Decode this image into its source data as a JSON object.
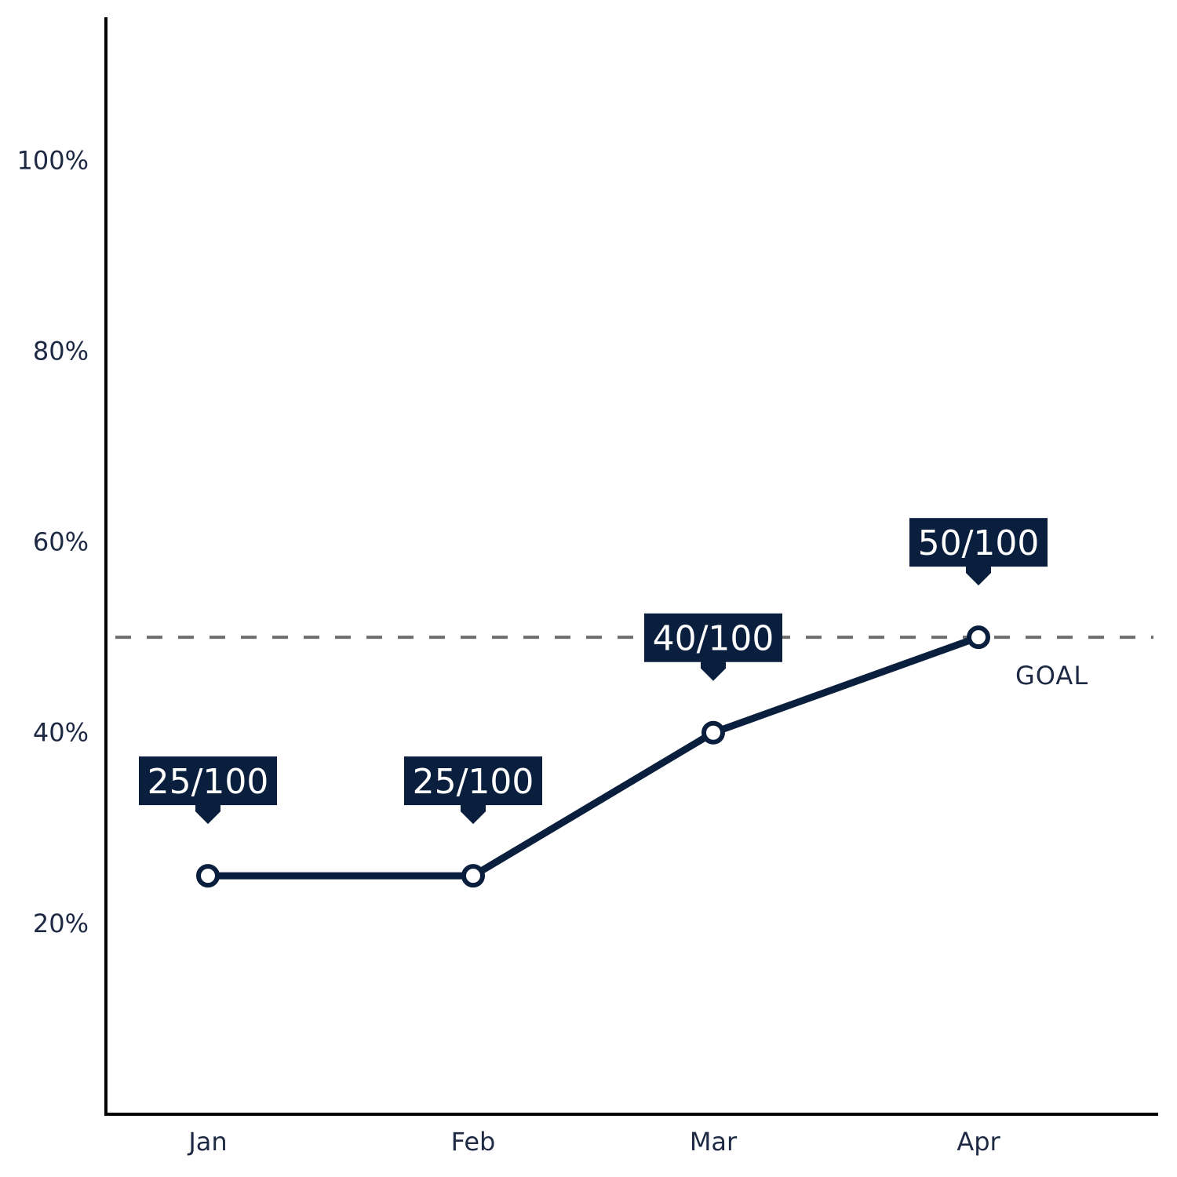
{
  "chart_data": {
    "type": "line",
    "categories": [
      "Jan",
      "Feb",
      "Mar",
      "Apr"
    ],
    "values": [
      25,
      25,
      40,
      50
    ],
    "data_labels": [
      "25/100",
      "25/100",
      "40/100",
      "50/100"
    ],
    "y_ticks": [
      20,
      40,
      60,
      80,
      100
    ],
    "y_tick_labels": [
      "20%",
      "40%",
      "60%",
      "80%",
      "100%"
    ],
    "ylim": [
      0,
      115
    ],
    "goal": {
      "value": 50,
      "label": "GOAL"
    },
    "title": "",
    "xlabel": "",
    "ylabel": "",
    "grid": false,
    "colors": {
      "line": "#0a1f3d",
      "label_box": "#0a1f3d",
      "goal_line": "#6e6e6e",
      "axis": "#000000",
      "text": "#1e2a44"
    }
  }
}
